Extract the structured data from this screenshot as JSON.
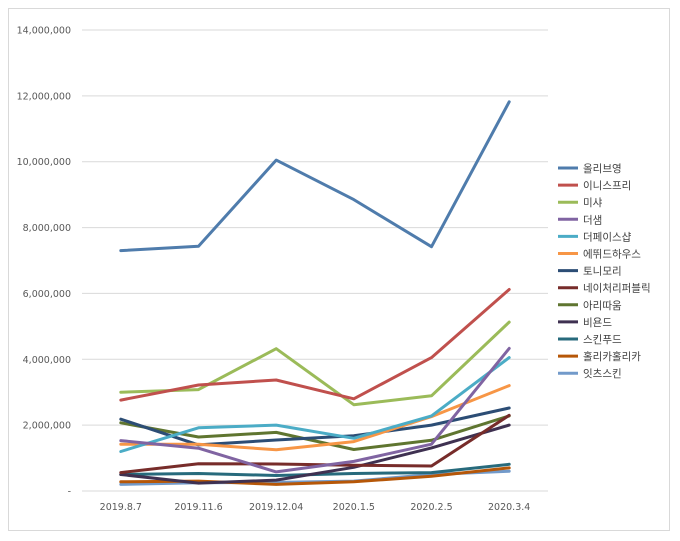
{
  "chart_data": {
    "type": "line",
    "title": "",
    "xlabel": "",
    "ylabel": "",
    "ylim": [
      0,
      14000000
    ],
    "y_ticks": [
      0,
      2000000,
      4000000,
      6000000,
      8000000,
      10000000,
      12000000,
      14000000
    ],
    "y_tick_labels": [
      "-",
      "2,000,000",
      "4,000,000",
      "6,000,000",
      "8,000,000",
      "10,000,000",
      "12,000,000",
      "14,000,000"
    ],
    "grid": true,
    "legend_position": "right",
    "categories": [
      "2019.8.7",
      "2019.11.6",
      "2019.12.04",
      "2020.1.5",
      "2020.2.5",
      "2020.3.4"
    ],
    "series": [
      {
        "name": "올리브영",
        "color": "#4f7cac",
        "values": [
          7300000,
          7430000,
          10050000,
          8850000,
          7420000,
          11820000
        ]
      },
      {
        "name": "이니스프리",
        "color": "#c0504d",
        "values": [
          2760000,
          3220000,
          3370000,
          2800000,
          4050000,
          6120000
        ]
      },
      {
        "name": "미샤",
        "color": "#9bbb59",
        "values": [
          3000000,
          3080000,
          4320000,
          2620000,
          2890000,
          5130000
        ]
      },
      {
        "name": "더샘",
        "color": "#8064a2",
        "values": [
          1530000,
          1300000,
          580000,
          900000,
          1420000,
          4330000
        ]
      },
      {
        "name": "더페이스샵",
        "color": "#4bacc6",
        "values": [
          1200000,
          1920000,
          2000000,
          1600000,
          2280000,
          4050000
        ]
      },
      {
        "name": "에뛰드하우스",
        "color": "#f79646",
        "values": [
          1420000,
          1420000,
          1250000,
          1500000,
          2260000,
          3200000
        ]
      },
      {
        "name": "토니모리",
        "color": "#2c4d75",
        "values": [
          2180000,
          1400000,
          1550000,
          1680000,
          2000000,
          2520000
        ]
      },
      {
        "name": "네이처리퍼블릭",
        "color": "#772c2a",
        "values": [
          560000,
          830000,
          820000,
          780000,
          760000,
          2300000
        ]
      },
      {
        "name": "아리따움",
        "color": "#5f7530",
        "values": [
          2070000,
          1640000,
          1780000,
          1260000,
          1540000,
          2280000
        ]
      },
      {
        "name": "비욘드",
        "color": "#3f3151",
        "values": [
          500000,
          240000,
          330000,
          720000,
          1310000,
          2000000
        ]
      },
      {
        "name": "스킨푸드",
        "color": "#276a7c",
        "values": [
          500000,
          530000,
          470000,
          530000,
          560000,
          810000
        ]
      },
      {
        "name": "홀리카홀리카",
        "color": "#b65708",
        "values": [
          280000,
          300000,
          200000,
          280000,
          450000,
          700000
        ]
      },
      {
        "name": "잇츠스킨",
        "color": "#729aca",
        "values": [
          200000,
          250000,
          260000,
          300000,
          500000,
          600000
        ]
      }
    ]
  }
}
